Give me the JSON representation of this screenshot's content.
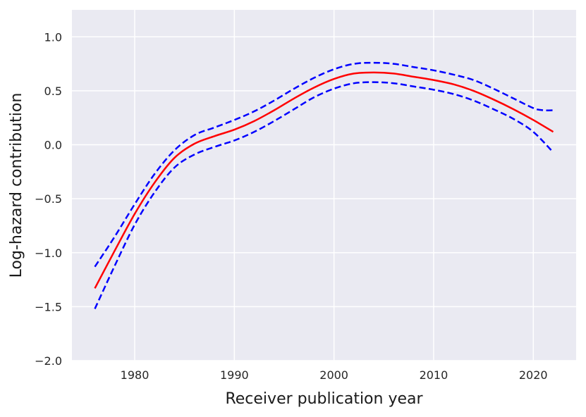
{
  "chart_data": {
    "type": "line",
    "title": "",
    "xlabel": "Receiver publication year",
    "ylabel": "Log-hazard contribution",
    "xlim": [
      1973.7,
      2024.3
    ],
    "ylim": [
      -2.0,
      1.25
    ],
    "xticks": [
      1980,
      1990,
      2000,
      2010,
      2020
    ],
    "yticks": [
      -2.0,
      -1.5,
      -1.0,
      -0.5,
      0.0,
      0.5,
      1.0
    ],
    "ytick_labels": [
      "−2.0",
      "−1.5",
      "−1.0",
      "−0.5",
      "0.0",
      "0.5",
      "1.0"
    ],
    "grid": true,
    "background": "#eaeaf2",
    "series": [
      {
        "role": "estimate",
        "color": "#ff0000",
        "dash": "solid",
        "x": [
          1976,
          1978,
          1980,
          1982,
          1984,
          1986,
          1988,
          1990,
          1992,
          1994,
          1996,
          1998,
          2000,
          2002,
          2004,
          2006,
          2008,
          2010,
          2012,
          2014,
          2016,
          2018,
          2020,
          2022
        ],
        "y": [
          -1.33,
          -0.98,
          -0.64,
          -0.35,
          -0.12,
          0.01,
          0.08,
          0.14,
          0.22,
          0.32,
          0.43,
          0.53,
          0.61,
          0.66,
          0.67,
          0.66,
          0.63,
          0.6,
          0.56,
          0.5,
          0.42,
          0.33,
          0.23,
          0.12
        ]
      },
      {
        "role": "upper-bound",
        "color": "#0000ff",
        "dash": "dashed",
        "x": [
          1976,
          1978,
          1980,
          1982,
          1984,
          1986,
          1988,
          1990,
          1992,
          1994,
          1996,
          1998,
          2000,
          2002,
          2004,
          2006,
          2008,
          2010,
          2012,
          2014,
          2016,
          2018,
          2020,
          2021,
          2022
        ],
        "y": [
          -1.13,
          -0.85,
          -0.55,
          -0.27,
          -0.05,
          0.09,
          0.16,
          0.23,
          0.31,
          0.41,
          0.52,
          0.62,
          0.7,
          0.75,
          0.76,
          0.75,
          0.72,
          0.69,
          0.65,
          0.6,
          0.52,
          0.43,
          0.34,
          0.32,
          0.32
        ]
      },
      {
        "role": "lower-bound",
        "color": "#0000ff",
        "dash": "dashed",
        "x": [
          1976,
          1978,
          1980,
          1982,
          1984,
          1986,
          1988,
          1990,
          1992,
          1994,
          1996,
          1998,
          2000,
          2002,
          2004,
          2006,
          2008,
          2010,
          2012,
          2014,
          2016,
          2018,
          2020,
          2022
        ],
        "y": [
          -1.52,
          -1.12,
          -0.74,
          -0.44,
          -0.21,
          -0.09,
          -0.02,
          0.04,
          0.12,
          0.22,
          0.33,
          0.44,
          0.52,
          0.57,
          0.58,
          0.57,
          0.54,
          0.51,
          0.47,
          0.41,
          0.33,
          0.24,
          0.12,
          -0.07
        ]
      }
    ]
  }
}
